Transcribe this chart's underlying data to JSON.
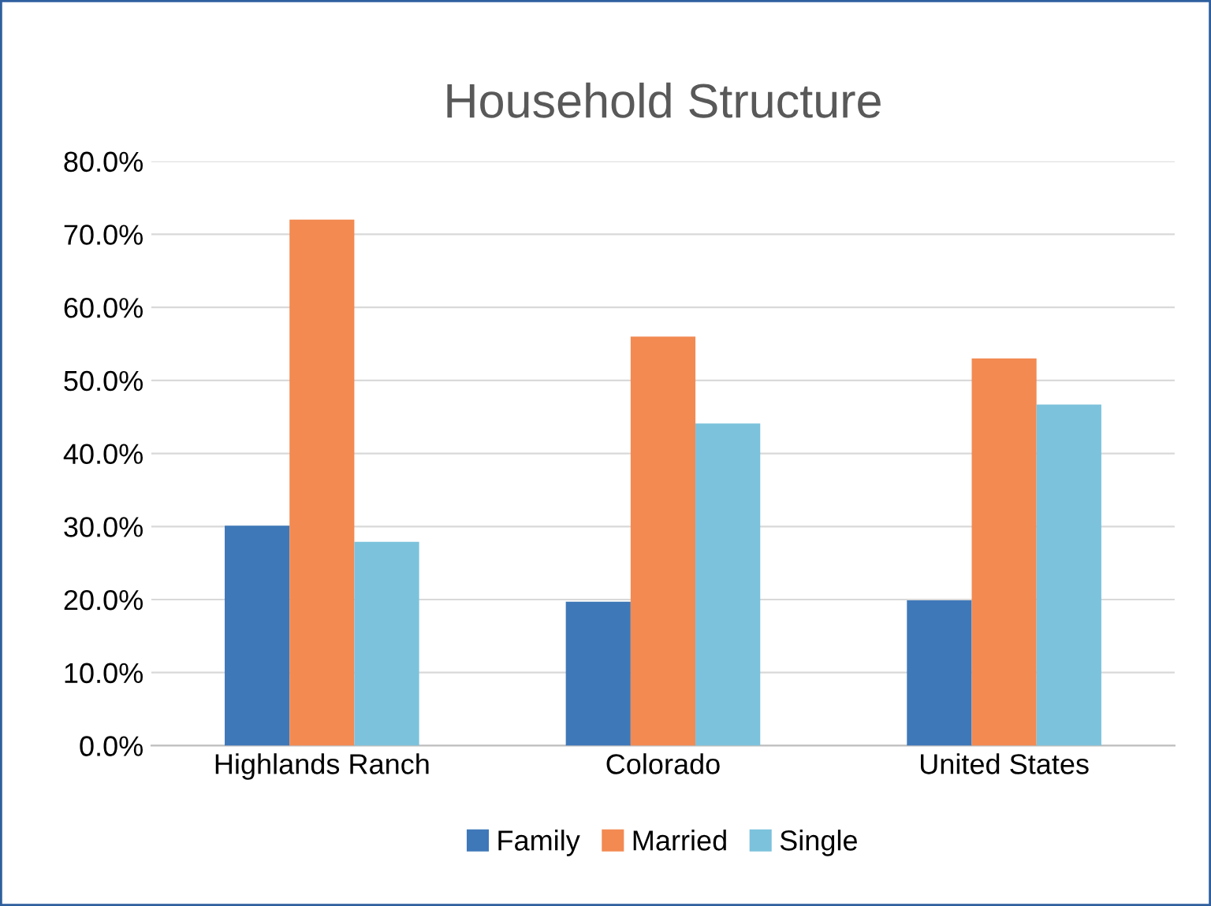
{
  "chart_data": {
    "type": "bar",
    "title": "Household Structure",
    "categories": [
      "Highlands Ranch",
      "Colorado",
      "United States"
    ],
    "series": [
      {
        "name": "Family",
        "color": "#3e78b8",
        "values": [
          30.1,
          19.7,
          19.9
        ]
      },
      {
        "name": "Married",
        "color": "#f28a52",
        "values": [
          72.0,
          56.0,
          53.0
        ]
      },
      {
        "name": "Single",
        "color": "#7cc2dc",
        "values": [
          27.9,
          44.1,
          46.7
        ]
      }
    ],
    "ylim": [
      0,
      80
    ],
    "yticks": [
      {
        "value": 0,
        "label": "0.0%"
      },
      {
        "value": 10,
        "label": "10.0%"
      },
      {
        "value": 20,
        "label": "20.0%"
      },
      {
        "value": 30,
        "label": "30.0%"
      },
      {
        "value": 40,
        "label": "40.0%"
      },
      {
        "value": 50,
        "label": "50.0%"
      },
      {
        "value": 60,
        "label": "60.0%"
      },
      {
        "value": 70,
        "label": "70.0%"
      },
      {
        "value": 80,
        "label": "80.0%"
      }
    ],
    "grid": "y",
    "legend": "bottom"
  }
}
